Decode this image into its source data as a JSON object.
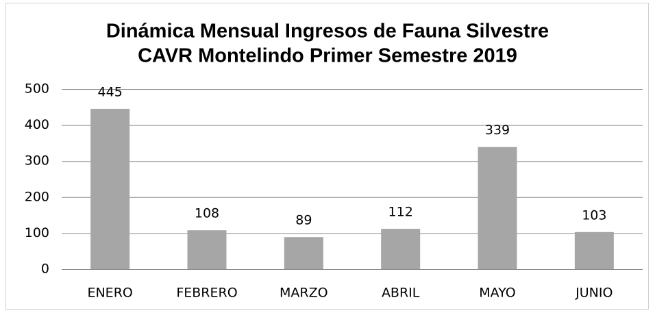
{
  "chart_data": {
    "type": "bar",
    "title": [
      "Dinámica Mensual Ingresos de Fauna Silvestre",
      "CAVR Montelindo Primer Semestre 2019"
    ],
    "categories": [
      "ENERO",
      "FEBRERO",
      "MARZO",
      "ABRIL",
      "MAYO",
      "JUNIO"
    ],
    "values": [
      445,
      108,
      89,
      112,
      339,
      103
    ],
    "color": "#a6a6a6",
    "ylim": [
      0,
      500
    ],
    "yticks": [
      0,
      100,
      200,
      300,
      400,
      500
    ],
    "grid": true
  }
}
